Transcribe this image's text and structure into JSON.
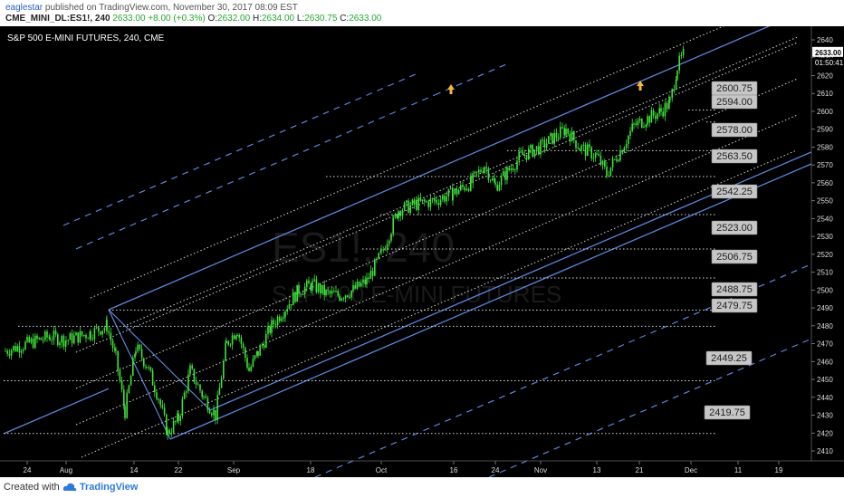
{
  "header": {
    "author": "eaglestar",
    "published_text": "published on TradingView.com, November 30, 2017 08:09 EST",
    "symbol": "CME_MINI_DL:ES1!, 240",
    "last": "2633.00",
    "change": "+8.00 (+0.3%)",
    "open_label": "O:",
    "open_value": "2632.00",
    "high_label": "H:",
    "high_value": "2634.00",
    "low_label": "L:",
    "low_value": "2630.75",
    "close_label": "C:",
    "close_value": "2633.00"
  },
  "footer": {
    "created_with": "Created with",
    "brand": "TradingView"
  },
  "colors": {
    "background": "#000000",
    "candles": "#3fe23a",
    "channel": "#5b86dc",
    "dotted": "#d8d8d8",
    "arrow": "#f5b53f",
    "label_bg": "#c6c6c6",
    "price_tag": "#ffffff"
  },
  "chart_data": {
    "type": "candlestick",
    "title": "S&P 500 E-MINI FUTURES, 240, CME",
    "watermark": "ES1!, 240",
    "watermark_sub": "S&P 500 E-MINI FUTURES",
    "x_tick_labels": [
      "24",
      "Aug",
      "14",
      "22",
      "Sep",
      "18",
      "Oct",
      "16",
      "24",
      "Nov",
      "13",
      "21",
      "Dec",
      "11",
      "19"
    ],
    "y_ticks": [
      2410,
      2420,
      2430,
      2440,
      2450,
      2460,
      2470,
      2480,
      2490,
      2500,
      2510,
      2520,
      2530,
      2540,
      2550,
      2560,
      2570,
      2580,
      2590,
      2600,
      2610,
      2620,
      2630,
      2640
    ],
    "ylim": [
      2405,
      2645
    ],
    "last_price": "2633.00",
    "countdown": "01:50:41",
    "level_labels": [
      2600.75,
      2594.0,
      2578.0,
      2563.5,
      2542.25,
      2523.0,
      2506.75,
      2488.75,
      2479.75,
      2449.25,
      2419.75
    ],
    "close_path": [
      [
        "24",
        2470
      ],
      [
        "Aug",
        2474
      ],
      [
        "14",
        2440
      ],
      [
        "22",
        2425
      ],
      [
        "Sep",
        2468
      ],
      [
        "18",
        2503
      ],
      [
        "Oct",
        2516
      ],
      [
        "16",
        2555
      ],
      [
        "24",
        2570
      ],
      [
        "Nov",
        2580
      ],
      [
        "13",
        2575
      ],
      [
        "21",
        2595
      ],
      [
        "Dec",
        2633
      ]
    ],
    "channels": {
      "pitchfork_pivot": [
        "Aug",
        2489
      ],
      "solid_lines": 4,
      "dashed_lines": 3,
      "dotted_parallels": 6
    }
  }
}
